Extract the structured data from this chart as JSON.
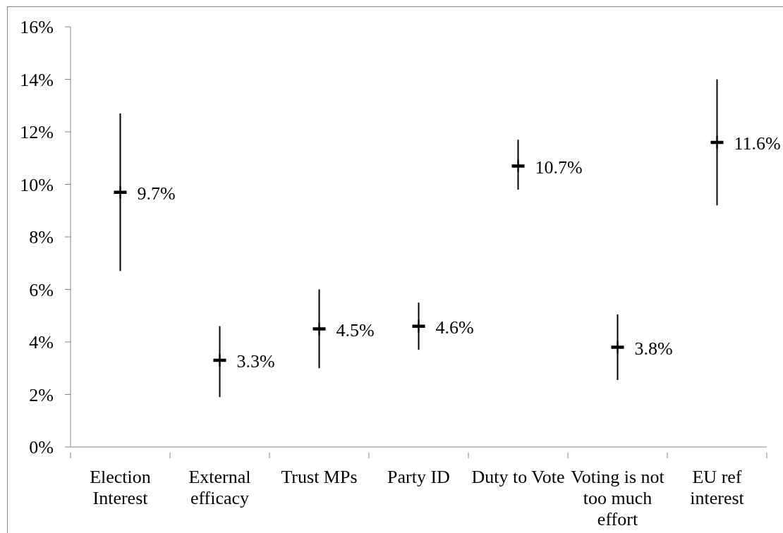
{
  "chart_data": {
    "type": "scatter",
    "categories": [
      "Election Interest",
      "External efficacy",
      "Trust MPs",
      "Party ID",
      "Duty to Vote",
      "Voting is not too much effort",
      "EU ref interest"
    ],
    "values": [
      9.7,
      3.3,
      4.5,
      4.6,
      10.7,
      3.8,
      11.6
    ],
    "errors": [
      [
        6.7,
        12.7
      ],
      [
        1.9,
        4.6
      ],
      [
        3.0,
        6.0
      ],
      [
        3.7,
        5.5
      ],
      [
        9.8,
        11.7
      ],
      [
        2.55,
        5.05
      ],
      [
        9.2,
        14.0
      ]
    ],
    "value_labels": [
      "9.7%",
      "3.3%",
      "4.5%",
      "4.6%",
      "10.7%",
      "3.8%",
      "11.6%"
    ],
    "color": "#000000",
    "ylim": [
      0,
      16
    ],
    "yticks": [
      {
        "value": 0,
        "label": "0%"
      },
      {
        "value": 2,
        "label": "2%"
      },
      {
        "value": 4,
        "label": "4%"
      },
      {
        "value": 6,
        "label": "6%"
      },
      {
        "value": 8,
        "label": "8%"
      },
      {
        "value": 10,
        "label": "10%"
      },
      {
        "value": 12,
        "label": "12%"
      },
      {
        "value": 14,
        "label": "14%"
      },
      {
        "value": 16,
        "label": "16%"
      }
    ]
  }
}
